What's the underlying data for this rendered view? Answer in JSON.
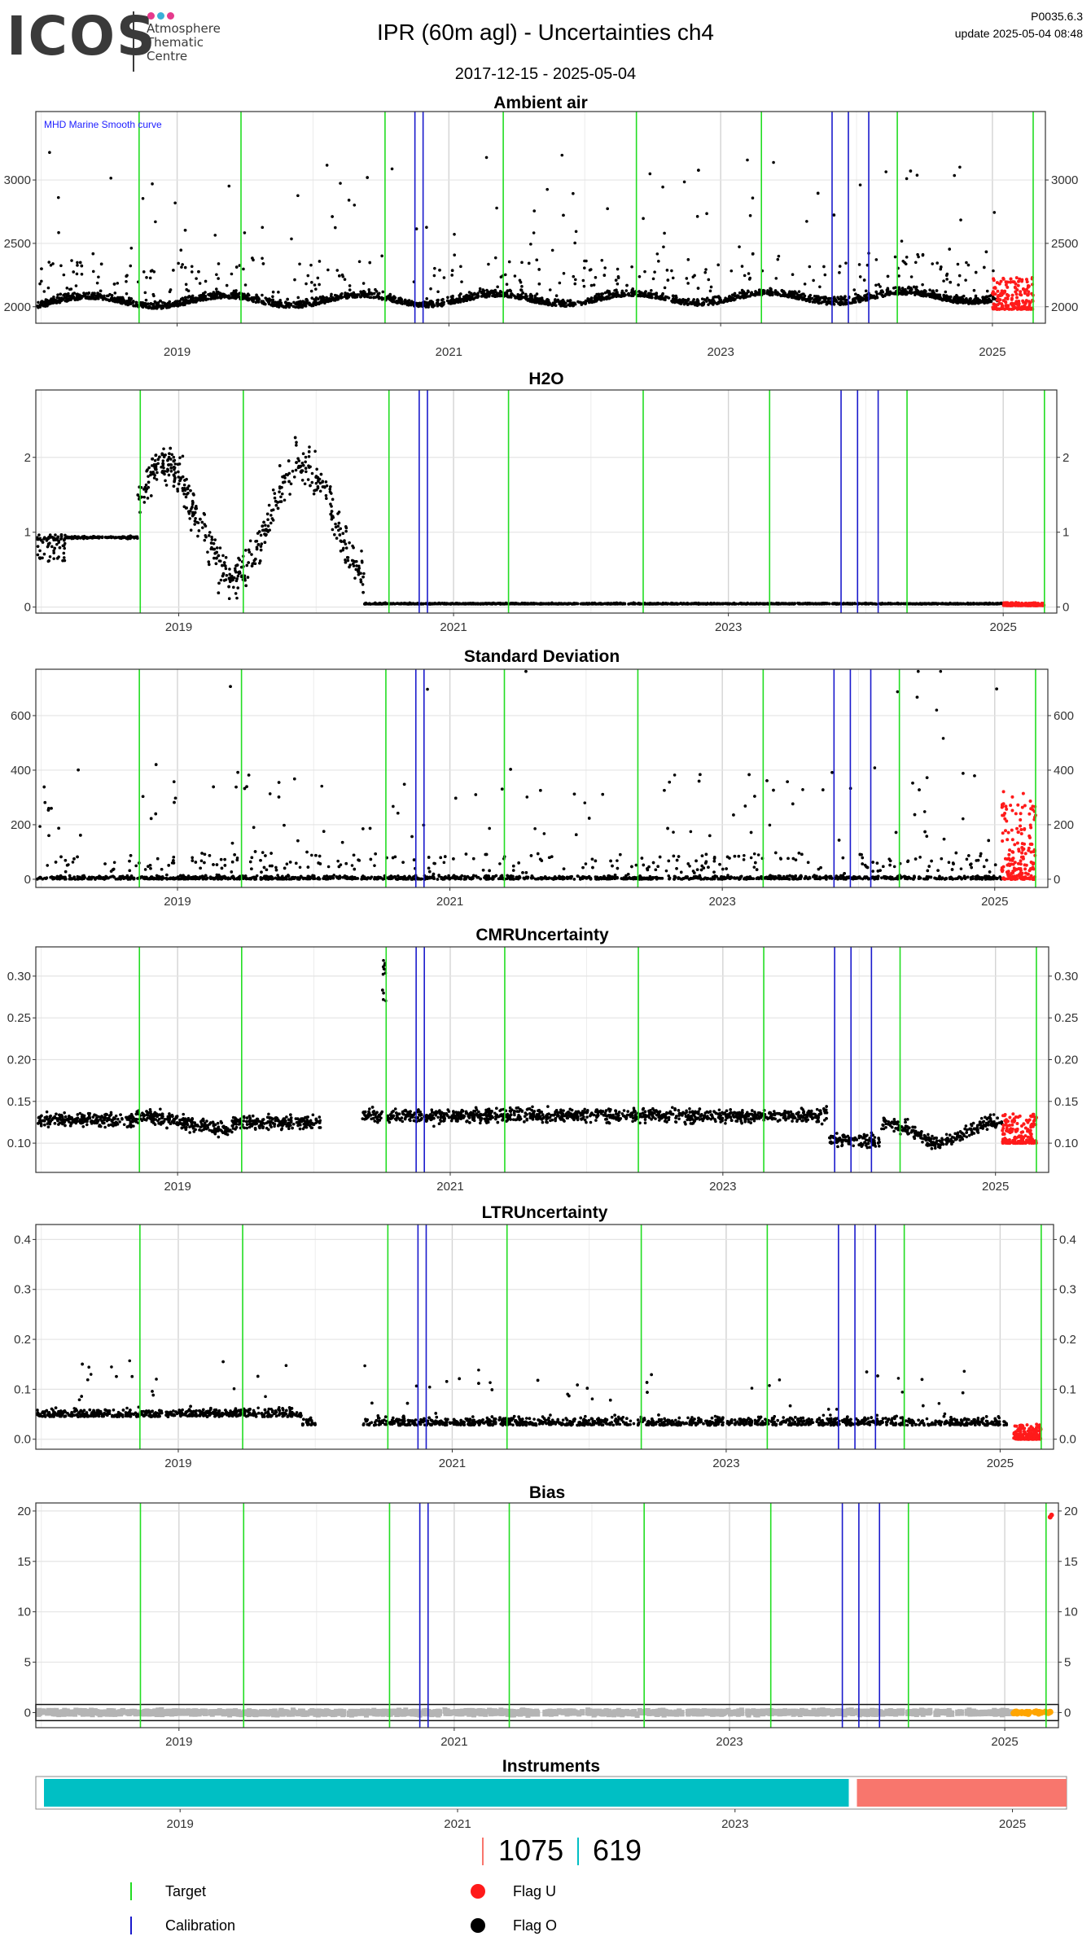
{
  "header": {
    "logo_text": "ICOS",
    "logo_sub": [
      "Atmosphere",
      "Thematic",
      "Centre"
    ],
    "logo_dot_colors": [
      "#e53a8c",
      "#3ab0d8",
      "#e53a8c"
    ],
    "title": "IPR  (60m agl) - Uncertainties ch4",
    "date_range": "2017-12-15 - 2025-05-04",
    "version": "P0035.6.3",
    "update": "update  2025-05-04 08:48"
  },
  "colors": {
    "target": "#22dd22",
    "calibration": "#1a1acc",
    "flag_u": "#ff1a1a",
    "flag_o": "#000000",
    "instrument_a": "#00bfc4",
    "instrument_b": "#f8766d",
    "bias_band": "#b4b4b4",
    "bias_flag": "#ffa500",
    "note_text": "#2020ff"
  },
  "target_lines": [
    2018.72,
    2019.47,
    2020.53,
    2021.4,
    2022.38,
    2023.3,
    2024.3,
    2025.3
  ],
  "calibration_lines": [
    2020.75,
    2020.81,
    2023.82,
    2023.94,
    2024.09
  ],
  "chart_data": [
    {
      "type": "scatter",
      "title": "Ambient air",
      "annotation": "MHD Marine Smooth curve",
      "xlim": [
        2017.96,
        2025.39
      ],
      "ylim": [
        1870,
        3540
      ],
      "yticks": [
        2000,
        2500,
        3000
      ],
      "xticks": [
        2019,
        2021,
        2023,
        2025
      ],
      "series": [
        {
          "name": "Flag O",
          "profile": "ambient"
        },
        {
          "name": "Flag U",
          "x_range": [
            2025.0,
            2025.3
          ],
          "y_range": [
            1980,
            2230
          ]
        }
      ]
    },
    {
      "type": "scatter",
      "title": "H2O",
      "xlim": [
        2017.96,
        2025.39
      ],
      "ylim": [
        -0.08,
        2.9
      ],
      "yticks": [
        0,
        1,
        2
      ],
      "xticks": [
        2019,
        2021,
        2023,
        2025
      ],
      "series": [
        {
          "name": "Flag O",
          "profile": "h2o"
        },
        {
          "name": "Flag U",
          "x_range": [
            2025.0,
            2025.3
          ],
          "y_range": [
            0.02,
            0.06
          ]
        }
      ]
    },
    {
      "type": "scatter",
      "title": "Standard Deviation",
      "xlim": [
        2017.96,
        2025.39
      ],
      "ylim": [
        -30,
        770
      ],
      "yticks": [
        0,
        200,
        400,
        600
      ],
      "xticks": [
        2019,
        2021,
        2023,
        2025
      ],
      "series": [
        {
          "name": "Flag O",
          "profile": "sd"
        },
        {
          "name": "Flag U",
          "x_range": [
            2025.05,
            2025.3
          ],
          "y_range": [
            0,
            330
          ]
        }
      ]
    },
    {
      "type": "scatter",
      "title": "CMRUncertainty",
      "xlim": [
        2017.96,
        2025.39
      ],
      "ylim": [
        0.065,
        0.335
      ],
      "yticks": [
        0.1,
        0.15,
        0.2,
        0.25,
        0.3
      ],
      "ytick_labels": [
        "0.10",
        "0.15",
        "0.20",
        "0.25",
        "0.30"
      ],
      "xticks": [
        2019,
        2021,
        2023,
        2025
      ],
      "series": [
        {
          "name": "Flag O",
          "profile": "cmr"
        },
        {
          "name": "Flag U",
          "x_range": [
            2025.05,
            2025.3
          ],
          "y_range": [
            0.1,
            0.135
          ]
        }
      ]
    },
    {
      "type": "scatter",
      "title": "LTRUncertainty",
      "xlim": [
        2017.96,
        2025.39
      ],
      "ylim": [
        -0.02,
        0.43
      ],
      "yticks": [
        0.0,
        0.1,
        0.2,
        0.3,
        0.4
      ],
      "ytick_labels": [
        "0.0",
        "0.1",
        "0.2",
        "0.3",
        "0.4"
      ],
      "xticks": [
        2019,
        2021,
        2023,
        2025
      ],
      "series": [
        {
          "name": "Flag O",
          "profile": "ltr"
        },
        {
          "name": "Flag U",
          "x_range": [
            2025.1,
            2025.3
          ],
          "y_range": [
            0.0,
            0.03
          ]
        }
      ]
    },
    {
      "type": "scatter",
      "title": "Bias",
      "xlim": [
        2017.96,
        2025.39
      ],
      "ylim": [
        -1.5,
        20.8
      ],
      "yticks": [
        0,
        5,
        10,
        15,
        20
      ],
      "xticks": [
        2019,
        2021,
        2023,
        2025
      ],
      "series": [
        {
          "name": "Flag O",
          "profile": "bias"
        },
        {
          "name": "Flag U",
          "x": [
            2025.33,
            2025.34
          ],
          "y": [
            19.4,
            19.6
          ]
        }
      ]
    },
    {
      "type": "bar",
      "title": "Instruments",
      "xlim": [
        2017.96,
        2025.39
      ],
      "xticks": [
        2019,
        2021,
        2023,
        2025
      ],
      "series": [
        {
          "x_range": [
            2017.96,
            2023.82
          ],
          "color": "instrument_a",
          "label": "619"
        },
        {
          "x_range": [
            2023.82,
            2025.39
          ],
          "color": "instrument_b",
          "label": "1075"
        }
      ]
    }
  ],
  "instrument_counts": [
    {
      "label": "1075",
      "color": "#f8766d"
    },
    {
      "label": "619",
      "color": "#00bfc4"
    }
  ],
  "legend": {
    "target": "Target",
    "calibration": "Calibration",
    "flag_u": "Flag U",
    "flag_o": "Flag O"
  }
}
